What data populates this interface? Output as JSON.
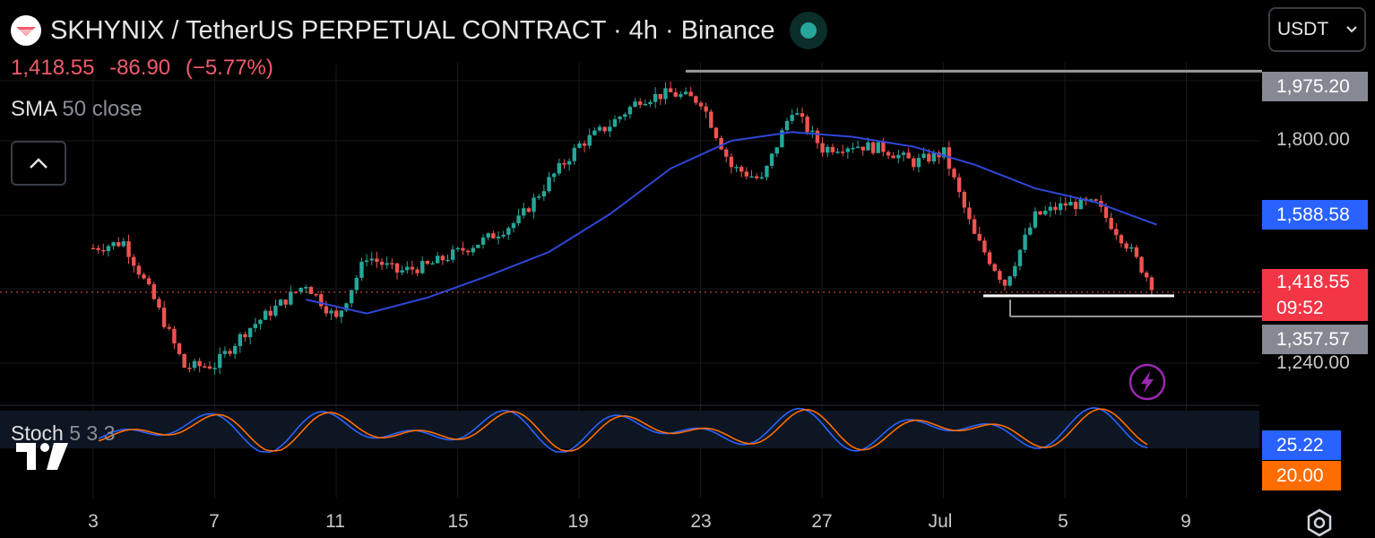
{
  "header": {
    "title": "SKHYNIX / TetherUS PERPETUAL CONTRACT · 4h · Binance",
    "last_price": "1,418.55",
    "change": "-86.90",
    "change_pct": "(−5.77%)"
  },
  "indicators": {
    "sma": {
      "name": "SMA",
      "params": "50 close"
    },
    "stoch": {
      "name": "Stoch",
      "params": "5 3 3"
    }
  },
  "currency_selector": {
    "value": "USDT"
  },
  "price_axis": {
    "ticks": [
      "1,800.00",
      "1,240.00"
    ],
    "tags": {
      "high_level": "1,975.20",
      "sma": "1,588.58",
      "last": "1,418.55",
      "countdown": "09:52",
      "low_level": "1,357.57"
    }
  },
  "stoch_axis": {
    "k_value": "25.22",
    "d_value": "20.00"
  },
  "time_axis": {
    "labels": [
      "3",
      "7",
      "11",
      "15",
      "19",
      "23",
      "27",
      "Jul",
      "5",
      "9"
    ]
  },
  "colors": {
    "up": "#26a69a",
    "down": "#ef5350",
    "sma": "#2962ff",
    "stoch_k": "#2962ff",
    "stoch_d": "#ff6d00",
    "last_tag": "#f23645",
    "level_tag": "#787b86"
  },
  "chart_data": {
    "type": "candlestick",
    "interval": "4h",
    "x_labels": [
      "3",
      "7",
      "11",
      "15",
      "19",
      "23",
      "27",
      "Jul",
      "5",
      "9"
    ],
    "close_series": [
      {
        "x": "Jun 3",
        "close": 1530
      },
      {
        "x": "Jun 4",
        "close": 1545
      },
      {
        "x": "Jun 5",
        "close": 1400
      },
      {
        "x": "Jun 6",
        "close": 1230
      },
      {
        "x": "Jun 7",
        "close": 1235
      },
      {
        "x": "Jun 8",
        "close": 1320
      },
      {
        "x": "Jun 9",
        "close": 1380
      },
      {
        "x": "Jun 10",
        "close": 1440
      },
      {
        "x": "Jun 11",
        "close": 1350
      },
      {
        "x": "Jun 12",
        "close": 1510
      },
      {
        "x": "Jun 13",
        "close": 1470
      },
      {
        "x": "Jun 14",
        "close": 1485
      },
      {
        "x": "Jun 15",
        "close": 1520
      },
      {
        "x": "Jun 16",
        "close": 1555
      },
      {
        "x": "Jun 17",
        "close": 1600
      },
      {
        "x": "Jun 18",
        "close": 1700
      },
      {
        "x": "Jun 19",
        "close": 1790
      },
      {
        "x": "Jun 20",
        "close": 1840
      },
      {
        "x": "Jun 21",
        "close": 1905
      },
      {
        "x": "Jun 22",
        "close": 1920
      },
      {
        "x": "Jun 23",
        "close": 1900
      },
      {
        "x": "Jun 24",
        "close": 1735
      },
      {
        "x": "Jun 25",
        "close": 1700
      },
      {
        "x": "Jun 26",
        "close": 1880
      },
      {
        "x": "Jun 27",
        "close": 1780
      },
      {
        "x": "Jun 28",
        "close": 1790
      },
      {
        "x": "Jun 29",
        "close": 1780
      },
      {
        "x": "Jun 30",
        "close": 1745
      },
      {
        "x": "Jul 1",
        "close": 1770
      },
      {
        "x": "Jul 2",
        "close": 1560
      },
      {
        "x": "Jul 3",
        "close": 1440
      },
      {
        "x": "Jul 4",
        "close": 1610
      },
      {
        "x": "Jul 5",
        "close": 1640
      },
      {
        "x": "Jul 6",
        "close": 1640
      },
      {
        "x": "Jul 7",
        "close": 1540
      },
      {
        "x": "Jul 8",
        "close": 1418.55
      }
    ],
    "sma50_series": [
      {
        "x": "Jun 10",
        "value": 1400
      },
      {
        "x": "Jun 12",
        "value": 1365
      },
      {
        "x": "Jun 14",
        "value": 1405
      },
      {
        "x": "Jun 16",
        "value": 1460
      },
      {
        "x": "Jun 18",
        "value": 1520
      },
      {
        "x": "Jun 20",
        "value": 1615
      },
      {
        "x": "Jun 22",
        "value": 1730
      },
      {
        "x": "Jun 24",
        "value": 1800
      },
      {
        "x": "Jun 26",
        "value": 1822
      },
      {
        "x": "Jun 28",
        "value": 1810
      },
      {
        "x": "Jun 30",
        "value": 1785
      },
      {
        "x": "Jul 2",
        "value": 1740
      },
      {
        "x": "Jul 4",
        "value": 1680
      },
      {
        "x": "Jul 6",
        "value": 1645
      },
      {
        "x": "Jul 8",
        "value": 1588.58
      }
    ],
    "levels": [
      {
        "label": "1,975.20",
        "value": 1975.2
      },
      {
        "label": "1,357.57",
        "value": 1357.57
      }
    ],
    "last_price": 1418.55,
    "stoch": {
      "k": 25.22,
      "d": 20.0,
      "bands": [
        80,
        20
      ]
    }
  }
}
